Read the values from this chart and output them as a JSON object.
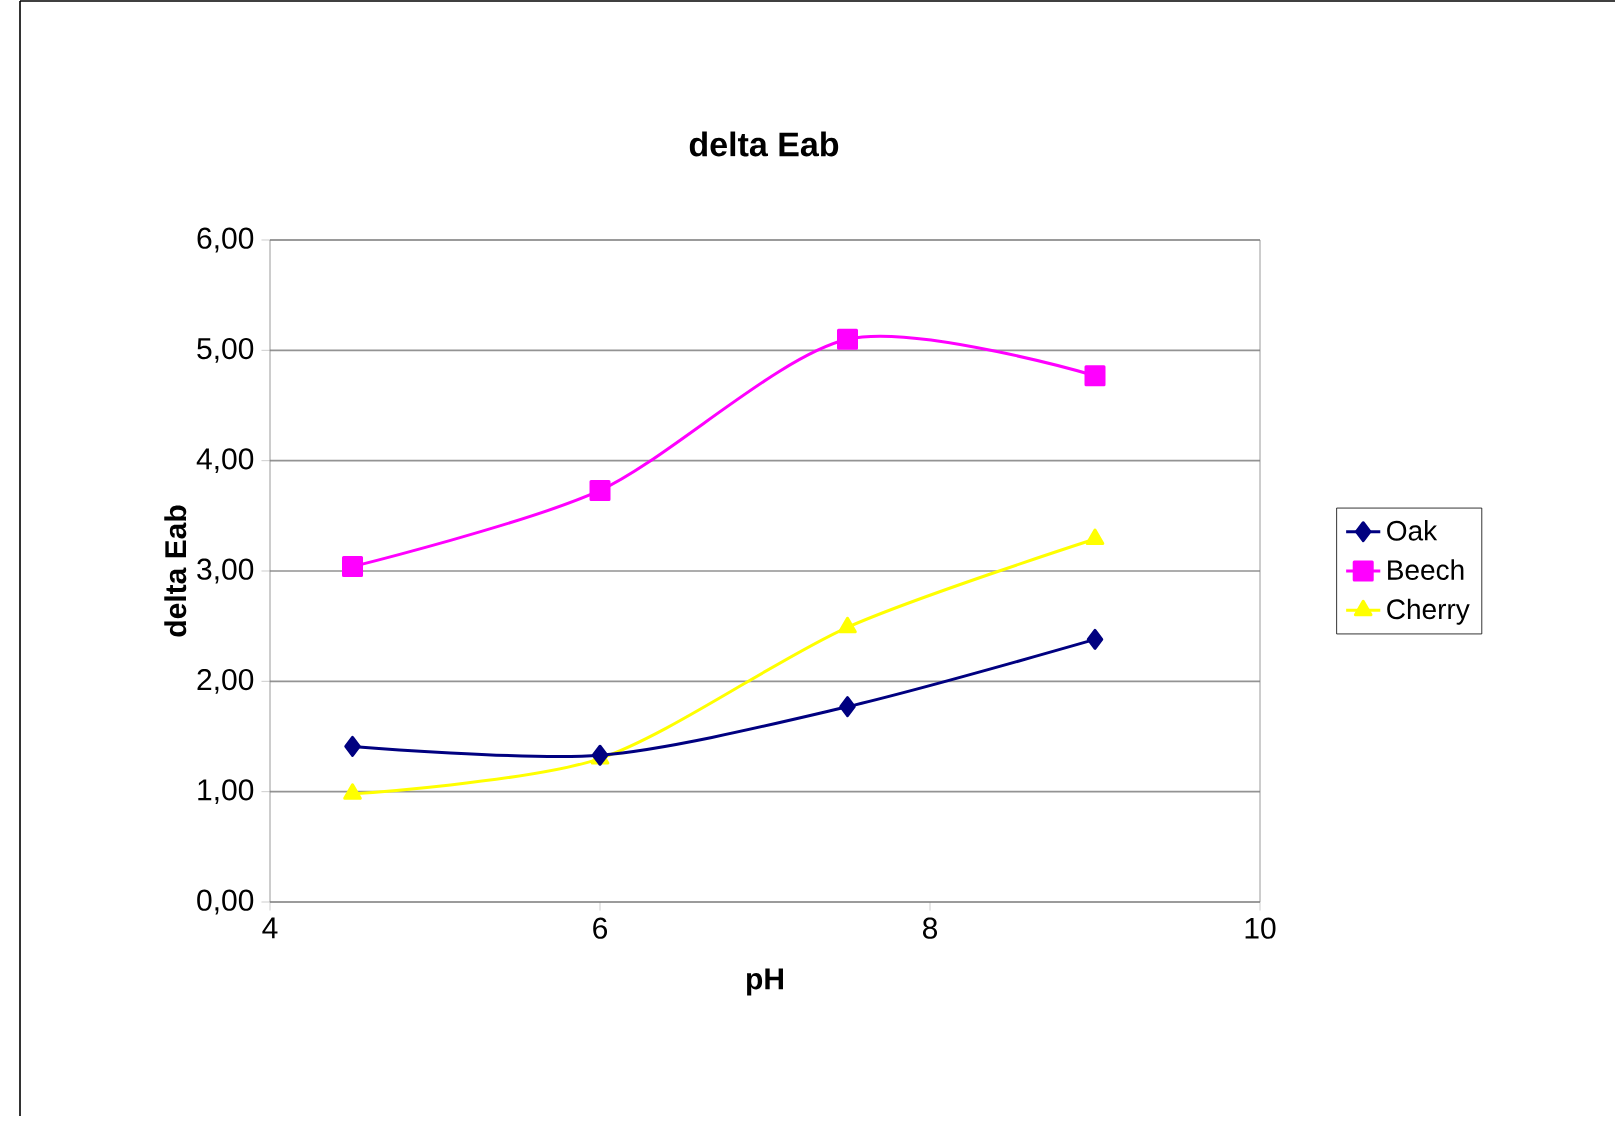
{
  "chart_data": {
    "type": "line",
    "title": "delta Eab",
    "xlabel": "pH",
    "ylabel": "delta Eab",
    "x": [
      4.5,
      6,
      7.5,
      9
    ],
    "series": [
      {
        "name": "Oak",
        "color": "#000080",
        "marker": "diamond",
        "values": [
          1.41,
          1.33,
          1.77,
          2.38
        ]
      },
      {
        "name": "Beech",
        "color": "#ff00ff",
        "marker": "square",
        "values": [
          3.04,
          3.73,
          5.1,
          4.77
        ]
      },
      {
        "name": "Cherry",
        "color": "#ffff00",
        "marker": "triangle",
        "values": [
          0.98,
          1.3,
          2.49,
          3.29
        ]
      }
    ],
    "xlim": [
      4,
      10
    ],
    "xticks": [
      4,
      6,
      8,
      10
    ],
    "ylim": [
      0,
      6
    ],
    "yticks": [
      {
        "value": 0,
        "label": "0,00"
      },
      {
        "value": 1,
        "label": "1,00"
      },
      {
        "value": 2,
        "label": "2,00"
      },
      {
        "value": 3,
        "label": "3,00"
      },
      {
        "value": 4,
        "label": "4,00"
      },
      {
        "value": 5,
        "label": "5,00"
      },
      {
        "value": 6,
        "label": "6,00"
      }
    ],
    "grid": "y",
    "legend": "right"
  }
}
